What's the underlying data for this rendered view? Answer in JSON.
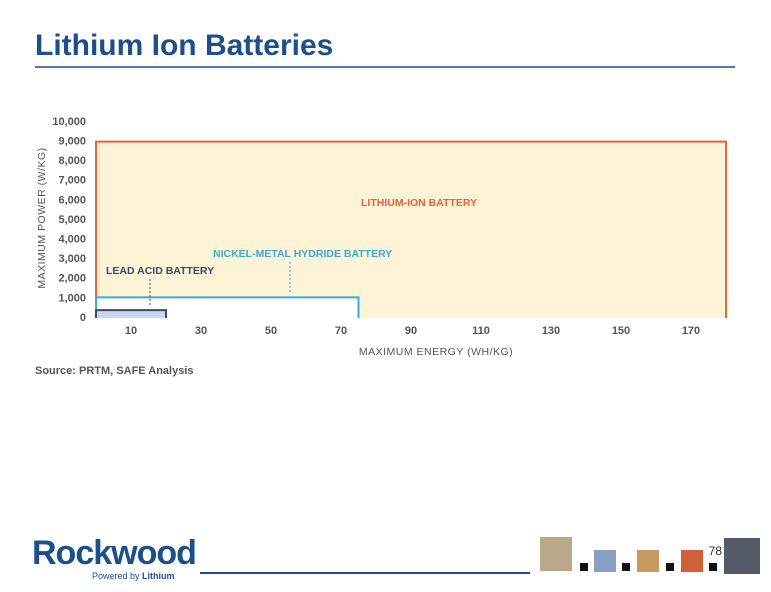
{
  "slide": {
    "title": "Lithium Ion Batteries",
    "source": "Source: PRTM, SAFE Analysis",
    "page_number": "78",
    "logo": "Rockwood",
    "logo_tagline": "Powered by",
    "logo_tagline_bold": "Lithium"
  },
  "chart_data": {
    "type": "region",
    "x_label": "MAXIMUM ENERGY (WH/KG)",
    "y_label": "MAXIMUM POWER (W/KG)",
    "xlim": [
      0,
      180
    ],
    "ylim": [
      0,
      10000
    ],
    "xticks": [
      10,
      30,
      50,
      70,
      90,
      110,
      130,
      150,
      170
    ],
    "yticks": [
      0,
      {
        "value": 1000,
        "label": "1,000"
      },
      {
        "value": 2000,
        "label": "2,000"
      },
      {
        "value": 3000,
        "label": "3,000"
      },
      {
        "value": 4000,
        "label": "4,000"
      },
      {
        "value": 5000,
        "label": "5,000"
      },
      {
        "value": 6000,
        "label": "6,000"
      },
      {
        "value": 7000,
        "label": "7,000"
      },
      {
        "value": 8000,
        "label": "8,000"
      },
      {
        "value": 9000,
        "label": "9,000"
      },
      {
        "value": 10000,
        "label": "10,000"
      }
    ],
    "series": [
      {
        "name": "LITHIUM-ION BATTERY",
        "color": "#e8643c",
        "fill": "#fdf3d6",
        "x": [
          180
        ],
        "values": [
          9000
        ]
      },
      {
        "name": "NICKEL-METAL HYDRIDE BATTERY",
        "color": "#3aabd8",
        "fill": "#ffffff",
        "x": [
          75
        ],
        "values": [
          1050
        ]
      },
      {
        "name": "LEAD ACID BATTERY",
        "color": "#3b4a6e",
        "fill": "#c9d6ec",
        "x": [
          20
        ],
        "values": [
          400
        ]
      }
    ]
  }
}
